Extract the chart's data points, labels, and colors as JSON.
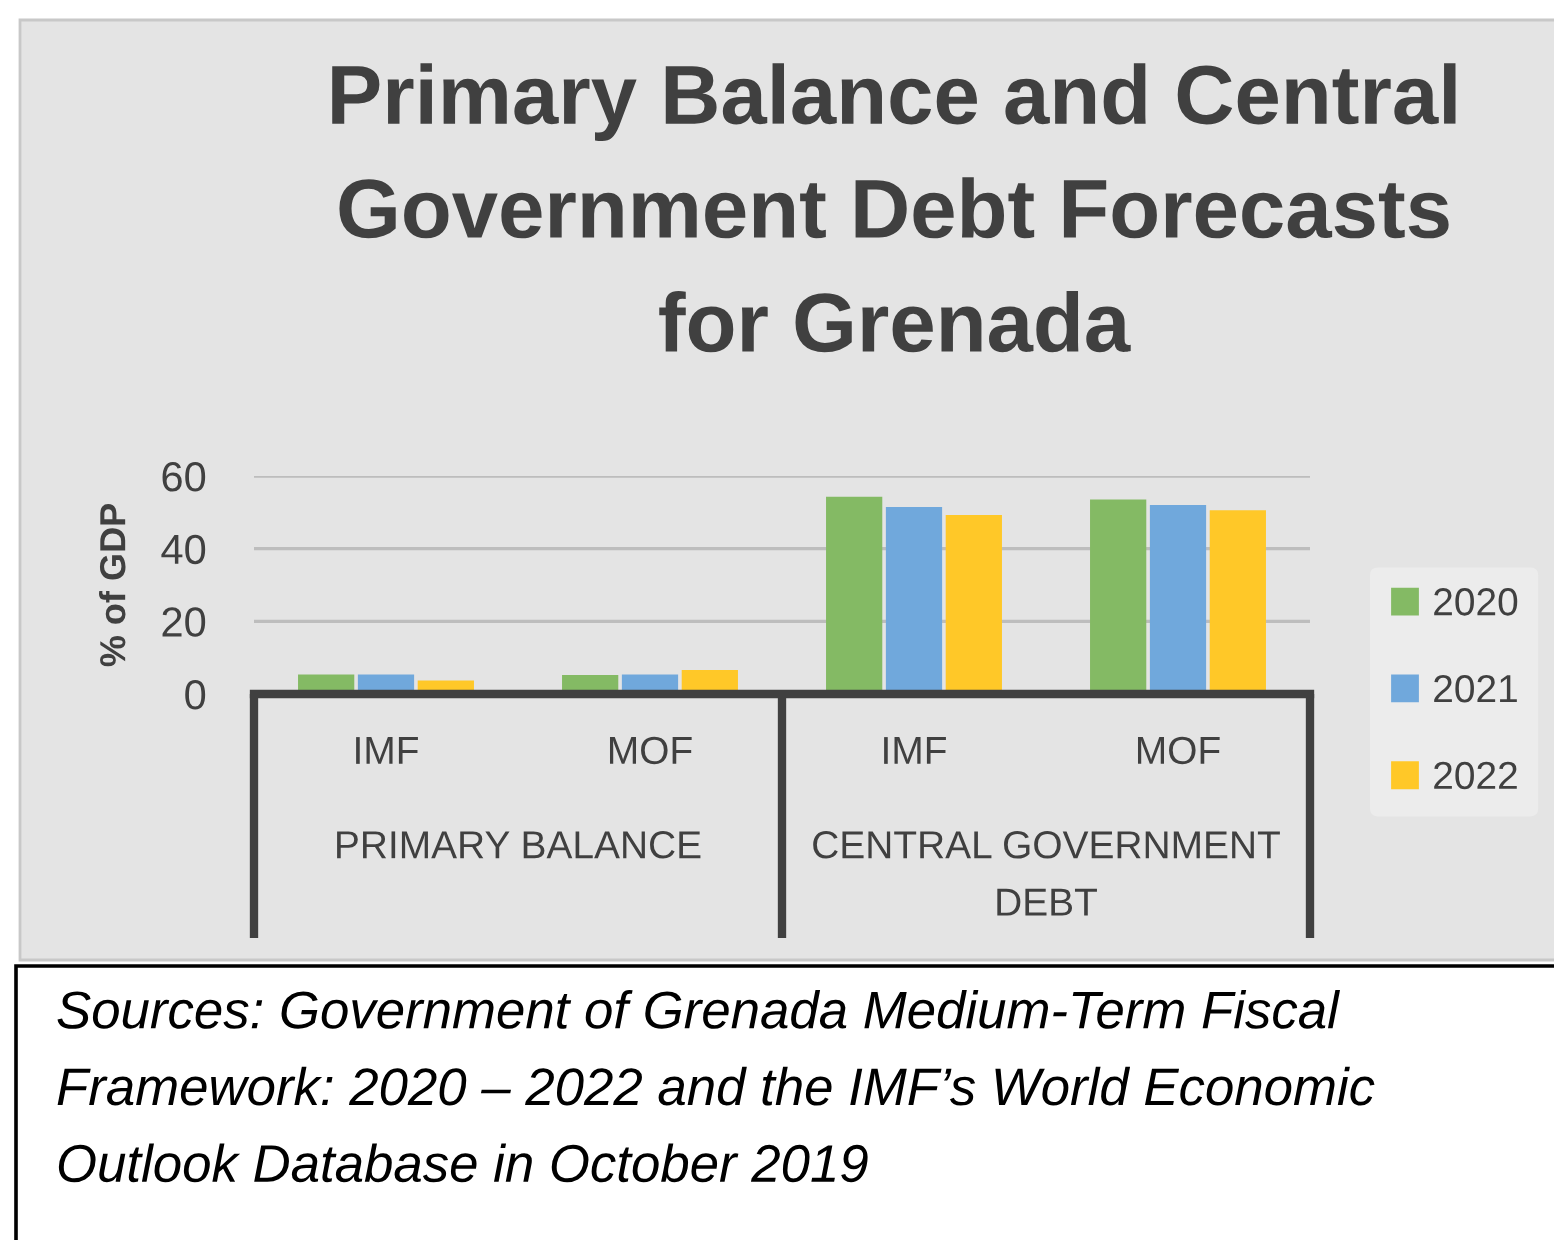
{
  "chart_data": {
    "type": "bar",
    "title": "Primary Balance and Central\nGovernment Debt Forecasts\nfor Grenada",
    "ylabel": "% of GDP",
    "categories": [
      "IMF",
      "MOF",
      "IMF",
      "MOF"
    ],
    "series": [
      {
        "name": "2020",
        "color": "#84ba64",
        "values": [
          5.4,
          5.2,
          54.3,
          53.5
        ]
      },
      {
        "name": "2021",
        "color": "#70a8dc",
        "values": [
          5.4,
          5.4,
          51.5,
          52.0
        ]
      },
      {
        "name": "2022",
        "color": "#ffc828",
        "values": [
          3.7,
          6.6,
          49.3,
          50.6
        ]
      }
    ],
    "ylim": [
      0,
      60
    ],
    "yticks": [
      0,
      20,
      40,
      60
    ],
    "grid": "y",
    "legend": "right",
    "annotations": [
      "PRIMARY BALANCE",
      "CENTRAL GOVERNMENT\nDEBT",
      "Sources: Government of Grenada Medium-Term Fiscal\nFramework: 2020 – 2022 and the IMF’s World Economic\nOutlook Database in October 2019"
    ]
  }
}
